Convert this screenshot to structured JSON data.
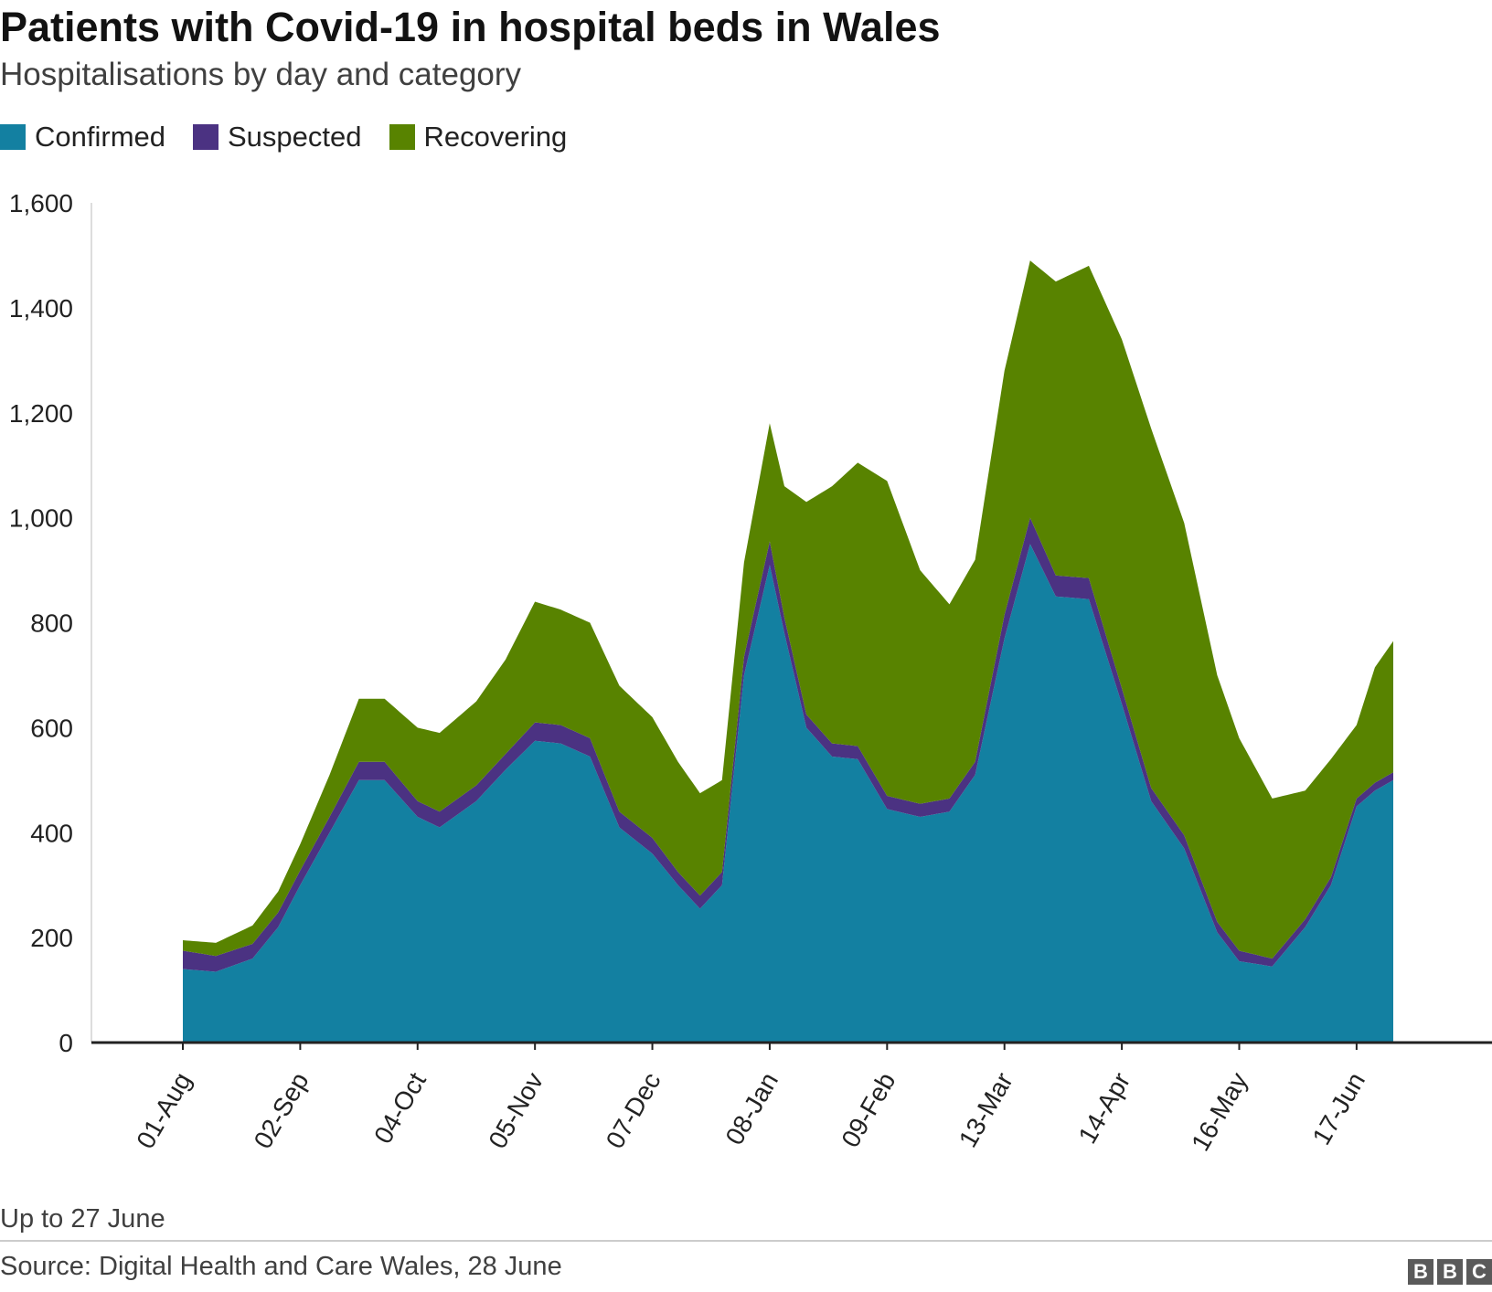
{
  "header": {
    "title": "Patients with Covid-19 in hospital beds in Wales",
    "subtitle": "Hospitalisations by day and category"
  },
  "legend": [
    {
      "label": "Confirmed",
      "color": "#1380a1"
    },
    {
      "label": "Suspected",
      "color": "#4b3282"
    },
    {
      "label": "Recovering",
      "color": "#588300"
    }
  ],
  "footer": {
    "note": "Up to 27 June",
    "source": "Source: Digital Health and Care Wales, 28 June",
    "logo_letters": [
      "B",
      "B",
      "C"
    ]
  },
  "chart_data": {
    "type": "area",
    "stacked": true,
    "x_type": "date",
    "x_start": "2020-08-01",
    "x_end": "2021-06-27",
    "ylim": [
      0,
      1600
    ],
    "y_ticks": [
      0,
      200,
      400,
      600,
      800,
      1000,
      1200,
      1400,
      1600
    ],
    "y_tick_labels": [
      "0",
      "200",
      "400",
      "600",
      "800",
      "1,000",
      "1,200",
      "1,400",
      "1,600"
    ],
    "x_tick_dates": [
      "2020-08-01",
      "2020-09-02",
      "2020-10-04",
      "2020-11-05",
      "2020-12-07",
      "2021-01-08",
      "2021-02-09",
      "2021-03-13",
      "2021-04-14",
      "2021-05-16",
      "2021-06-17"
    ],
    "x_tick_labels": [
      "01-Aug",
      "02-Sep",
      "04-Oct",
      "05-Nov",
      "07-Dec",
      "08-Jan",
      "09-Feb",
      "13-Mar",
      "14-Apr",
      "16-May",
      "17-Jun"
    ],
    "grid": false,
    "legend_position": "top-left",
    "series": [
      {
        "name": "Confirmed",
        "color": "#1380a1",
        "points": [
          [
            "2020-08-01",
            140
          ],
          [
            "2020-08-10",
            135
          ],
          [
            "2020-08-20",
            160
          ],
          [
            "2020-08-27",
            220
          ],
          [
            "2020-09-02",
            300
          ],
          [
            "2020-09-10",
            400
          ],
          [
            "2020-09-18",
            500
          ],
          [
            "2020-09-25",
            500
          ],
          [
            "2020-10-04",
            430
          ],
          [
            "2020-10-10",
            410
          ],
          [
            "2020-10-20",
            460
          ],
          [
            "2020-10-28",
            520
          ],
          [
            "2020-11-05",
            575
          ],
          [
            "2020-11-12",
            570
          ],
          [
            "2020-11-20",
            545
          ],
          [
            "2020-11-28",
            410
          ],
          [
            "2020-12-07",
            360
          ],
          [
            "2020-12-14",
            300
          ],
          [
            "2020-12-20",
            255
          ],
          [
            "2020-12-26",
            300
          ],
          [
            "2021-01-01",
            700
          ],
          [
            "2021-01-08",
            910
          ],
          [
            "2021-01-12",
            780
          ],
          [
            "2021-01-18",
            600
          ],
          [
            "2021-01-25",
            545
          ],
          [
            "2021-02-01",
            540
          ],
          [
            "2021-02-09",
            445
          ],
          [
            "2021-02-18",
            430
          ],
          [
            "2021-02-26",
            440
          ],
          [
            "2021-03-05",
            510
          ],
          [
            "2021-03-13",
            770
          ],
          [
            "2021-03-20",
            950
          ],
          [
            "2021-03-27",
            850
          ],
          [
            "2021-04-05",
            845
          ],
          [
            "2021-04-14",
            645
          ],
          [
            "2021-04-22",
            460
          ],
          [
            "2021-05-01",
            370
          ],
          [
            "2021-05-10",
            210
          ],
          [
            "2021-05-16",
            155
          ],
          [
            "2021-05-25",
            145
          ],
          [
            "2021-06-03",
            220
          ],
          [
            "2021-06-10",
            300
          ],
          [
            "2021-06-17",
            450
          ],
          [
            "2021-06-22",
            480
          ],
          [
            "2021-06-27",
            500
          ]
        ]
      },
      {
        "name": "Suspected",
        "color": "#4b3282",
        "points": [
          [
            "2020-08-01",
            35
          ],
          [
            "2020-08-10",
            30
          ],
          [
            "2020-08-20",
            28
          ],
          [
            "2020-08-27",
            28
          ],
          [
            "2020-09-02",
            28
          ],
          [
            "2020-09-10",
            30
          ],
          [
            "2020-09-18",
            35
          ],
          [
            "2020-09-25",
            35
          ],
          [
            "2020-10-04",
            30
          ],
          [
            "2020-10-10",
            30
          ],
          [
            "2020-10-20",
            30
          ],
          [
            "2020-10-28",
            30
          ],
          [
            "2020-11-05",
            35
          ],
          [
            "2020-11-12",
            35
          ],
          [
            "2020-11-20",
            35
          ],
          [
            "2020-11-28",
            30
          ],
          [
            "2020-12-07",
            30
          ],
          [
            "2020-12-14",
            25
          ],
          [
            "2020-12-20",
            25
          ],
          [
            "2020-12-26",
            25
          ],
          [
            "2021-01-01",
            35
          ],
          [
            "2021-01-08",
            45
          ],
          [
            "2021-01-12",
            30
          ],
          [
            "2021-01-18",
            25
          ],
          [
            "2021-01-25",
            25
          ],
          [
            "2021-02-01",
            25
          ],
          [
            "2021-02-09",
            25
          ],
          [
            "2021-02-18",
            25
          ],
          [
            "2021-02-26",
            25
          ],
          [
            "2021-03-05",
            25
          ],
          [
            "2021-03-13",
            45
          ],
          [
            "2021-03-20",
            50
          ],
          [
            "2021-03-27",
            40
          ],
          [
            "2021-04-05",
            40
          ],
          [
            "2021-04-14",
            30
          ],
          [
            "2021-04-22",
            25
          ],
          [
            "2021-05-01",
            25
          ],
          [
            "2021-05-10",
            20
          ],
          [
            "2021-05-16",
            20
          ],
          [
            "2021-05-25",
            15
          ],
          [
            "2021-06-03",
            15
          ],
          [
            "2021-06-10",
            15
          ],
          [
            "2021-06-17",
            15
          ],
          [
            "2021-06-22",
            15
          ],
          [
            "2021-06-27",
            15
          ]
        ]
      },
      {
        "name": "Recovering",
        "color": "#588300",
        "points": [
          [
            "2020-08-01",
            20
          ],
          [
            "2020-08-10",
            25
          ],
          [
            "2020-08-20",
            35
          ],
          [
            "2020-08-27",
            40
          ],
          [
            "2020-09-02",
            50
          ],
          [
            "2020-09-10",
            80
          ],
          [
            "2020-09-18",
            120
          ],
          [
            "2020-09-25",
            120
          ],
          [
            "2020-10-04",
            140
          ],
          [
            "2020-10-10",
            150
          ],
          [
            "2020-10-20",
            160
          ],
          [
            "2020-10-28",
            180
          ],
          [
            "2020-11-05",
            230
          ],
          [
            "2020-11-12",
            220
          ],
          [
            "2020-11-20",
            220
          ],
          [
            "2020-11-28",
            240
          ],
          [
            "2020-12-07",
            230
          ],
          [
            "2020-12-14",
            210
          ],
          [
            "2020-12-20",
            195
          ],
          [
            "2020-12-26",
            175
          ],
          [
            "2021-01-01",
            180
          ],
          [
            "2021-01-08",
            225
          ],
          [
            "2021-01-12",
            250
          ],
          [
            "2021-01-18",
            405
          ],
          [
            "2021-01-25",
            490
          ],
          [
            "2021-02-01",
            540
          ],
          [
            "2021-02-09",
            600
          ],
          [
            "2021-02-18",
            445
          ],
          [
            "2021-02-26",
            370
          ],
          [
            "2021-03-05",
            385
          ],
          [
            "2021-03-13",
            465
          ],
          [
            "2021-03-20",
            490
          ],
          [
            "2021-03-27",
            560
          ],
          [
            "2021-04-05",
            595
          ],
          [
            "2021-04-14",
            665
          ],
          [
            "2021-04-22",
            685
          ],
          [
            "2021-05-01",
            595
          ],
          [
            "2021-05-10",
            470
          ],
          [
            "2021-05-16",
            405
          ],
          [
            "2021-05-25",
            305
          ],
          [
            "2021-06-03",
            245
          ],
          [
            "2021-06-10",
            225
          ],
          [
            "2021-06-17",
            140
          ],
          [
            "2021-06-22",
            220
          ],
          [
            "2021-06-27",
            250
          ]
        ]
      }
    ]
  }
}
